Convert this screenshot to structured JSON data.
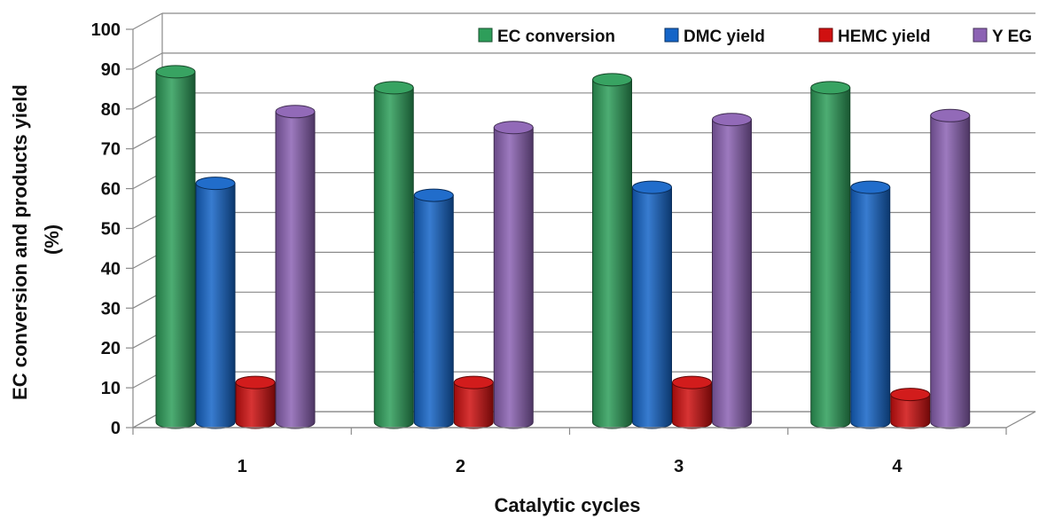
{
  "chart_data": {
    "type": "bar",
    "style": "3d-cylinder",
    "title": "",
    "xlabel": "Catalytic cycles",
    "ylabel": "EC conversion and products yield (%)",
    "ylabel_lines": [
      "EC conversion and products yield",
      "(%)"
    ],
    "categories": [
      "1",
      "2",
      "3",
      "4"
    ],
    "ylim": [
      0,
      100
    ],
    "yticks": [
      "0",
      "10",
      "20",
      "30",
      "40",
      "50",
      "60",
      "70",
      "80",
      "90",
      "100"
    ],
    "grid": true,
    "legend": "top-right",
    "series": [
      {
        "name": "EC conversion",
        "color": "#2e9e5a",
        "values": [
          88,
          84,
          86,
          84
        ]
      },
      {
        "name": "DMC yield",
        "color": "#1565c8",
        "values": [
          60,
          57,
          59,
          59
        ]
      },
      {
        "name": "HEMC yield",
        "color": "#d01010",
        "values": [
          10,
          10,
          10,
          7
        ]
      },
      {
        "name": "Y EG",
        "color": "#8c62b4",
        "values": [
          78,
          74,
          76,
          77
        ]
      }
    ]
  }
}
